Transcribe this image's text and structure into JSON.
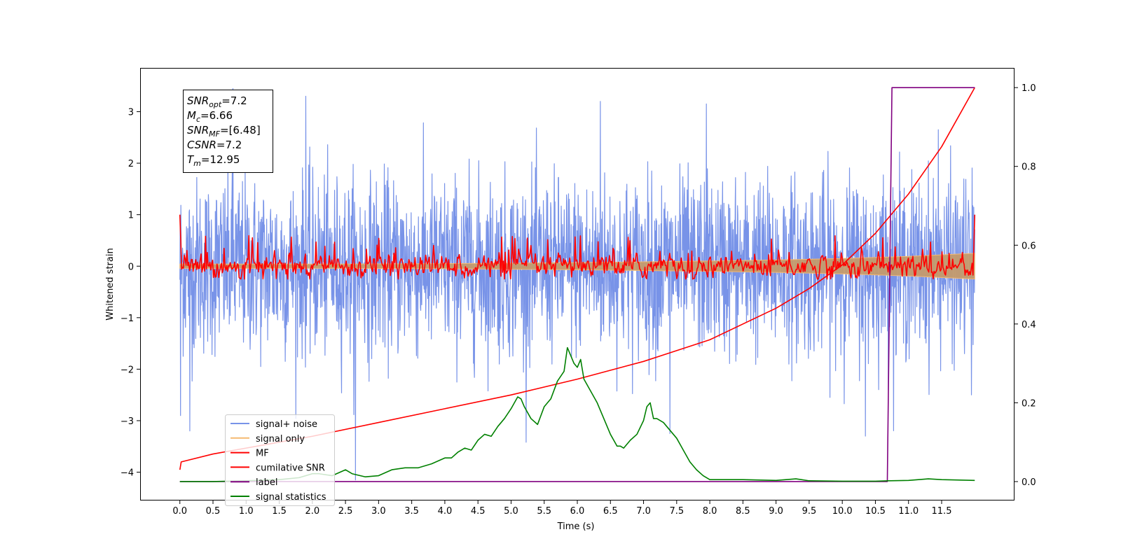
{
  "chart_data": {
    "type": "line",
    "title": "",
    "xlabel": "Time (s)",
    "ylabel": "Whitened strain",
    "ylabel_right": "",
    "xlim": [
      -0.6,
      12.6
    ],
    "ylim": [
      -4.55,
      3.85
    ],
    "ylim_right": [
      -0.048,
      1.05
    ],
    "x_ticks": [
      0.0,
      0.5,
      1.0,
      1.5,
      2.0,
      2.5,
      3.0,
      3.5,
      4.0,
      4.5,
      5.0,
      5.5,
      6.0,
      6.5,
      7.0,
      7.5,
      8.0,
      8.5,
      9.0,
      9.5,
      10.0,
      10.5,
      11.0,
      11.5
    ],
    "x_tick_labels": [
      "0.0",
      "0.5",
      "1.0",
      "1.5",
      "2.0",
      "2.5",
      "3.0",
      "3.5",
      "4.0",
      "4.5",
      "5.0",
      "5.5",
      "6.0",
      "6.5",
      "7.0",
      "7.5",
      "8.0",
      "8.5",
      "9.0",
      "9.5",
      "10.0",
      "10.5",
      "11.0",
      "11.5"
    ],
    "y_ticks": [
      3,
      2,
      1,
      0,
      -1,
      -2,
      -3,
      -4
    ],
    "y_tick_labels": [
      "3",
      "2",
      "1",
      "0",
      "−1",
      "−2",
      "−3",
      "−4"
    ],
    "y_right_ticks": [
      1.0,
      0.8,
      0.6,
      0.4,
      0.2,
      0.0
    ],
    "y_right_tick_labels": [
      "1.0",
      "0.8",
      "0.6",
      "0.4",
      "0.2",
      "0.0"
    ],
    "grid": false,
    "legend_position": "lower-left",
    "annotation_lines": [
      {
        "sym": "SNR",
        "sub": "opt",
        "value": "=7.2"
      },
      {
        "sym": "M",
        "sub": "c",
        "value": "=6.66"
      },
      {
        "sym": "SNR",
        "sub": "MF",
        "value": "=[6.48]"
      },
      {
        "sym": "CSNR",
        "sub": "",
        "value": "=7.2"
      },
      {
        "sym": "T",
        "sub": "m",
        "value": "=12.95"
      }
    ],
    "series": [
      {
        "name": "signal+ noise",
        "color": "#7893e8",
        "axis": "left",
        "kind": "noise",
        "x_range": [
          0.0,
          12.0
        ],
        "band_core": [
          -1.0,
          1.0
        ],
        "extreme_range": [
          -3.2,
          3.45
        ],
        "spikes": [
          [
            0.01,
            -2.9
          ],
          [
            0.15,
            -3.2
          ],
          [
            0.8,
            3.45
          ],
          [
            1.9,
            3.3
          ],
          [
            2.65,
            -4.15
          ],
          [
            6.35,
            3.2
          ],
          [
            7.4,
            -3.25
          ],
          [
            7.95,
            3.15
          ],
          [
            10.35,
            -3.3
          ],
          [
            11.45,
            2.65
          ],
          [
            11.95,
            -2.5
          ]
        ]
      },
      {
        "name": "signal only",
        "color": "#f5b971",
        "axis": "left",
        "kind": "envelope",
        "x": [
          0.0,
          2.0,
          4.0,
          6.0,
          8.0,
          9.0,
          10.0,
          11.0,
          12.0
        ],
        "upper": [
          0.04,
          0.04,
          0.05,
          0.07,
          0.1,
          0.12,
          0.15,
          0.19,
          0.25
        ],
        "lower": [
          -0.04,
          -0.04,
          -0.05,
          -0.07,
          -0.1,
          -0.12,
          -0.15,
          -0.19,
          -0.25
        ]
      },
      {
        "name": "MF",
        "color": "#ff0000",
        "axis": "left",
        "kind": "oscillation",
        "x_range": [
          0.0,
          12.0
        ],
        "start_value": 1.0,
        "end_value": 1.0,
        "range": [
          -0.25,
          0.6
        ]
      },
      {
        "name": "cumilative SNR",
        "color": "#ff0000",
        "axis": "right",
        "x": [
          0.0,
          0.02,
          0.5,
          1.0,
          1.5,
          2.0,
          3.0,
          4.0,
          5.0,
          6.0,
          7.0,
          8.0,
          9.0,
          9.5,
          10.0,
          10.5,
          11.0,
          11.5,
          12.0
        ],
        "values": [
          0.03,
          0.05,
          0.07,
          0.085,
          0.1,
          0.115,
          0.15,
          0.185,
          0.22,
          0.26,
          0.305,
          0.36,
          0.44,
          0.49,
          0.55,
          0.63,
          0.73,
          0.85,
          1.0
        ]
      },
      {
        "name": "label",
        "color": "#800080",
        "axis": "right",
        "x": [
          0.0,
          10.68,
          10.75,
          12.0
        ],
        "values": [
          0.0,
          0.0,
          1.0,
          1.0
        ]
      },
      {
        "name": "signal statistics",
        "color": "#008000",
        "axis": "right",
        "x": [
          0.0,
          0.5,
          1.0,
          1.5,
          1.8,
          2.0,
          2.1,
          2.3,
          2.5,
          2.6,
          2.8,
          3.0,
          3.2,
          3.4,
          3.6,
          3.8,
          4.0,
          4.1,
          4.2,
          4.3,
          4.4,
          4.5,
          4.6,
          4.7,
          4.8,
          4.9,
          5.0,
          5.1,
          5.15,
          5.2,
          5.3,
          5.4,
          5.5,
          5.6,
          5.7,
          5.8,
          5.85,
          5.9,
          5.95,
          6.0,
          6.05,
          6.1,
          6.2,
          6.3,
          6.4,
          6.5,
          6.6,
          6.65,
          6.7,
          6.8,
          6.9,
          7.0,
          7.05,
          7.1,
          7.15,
          7.2,
          7.3,
          7.4,
          7.5,
          7.6,
          7.7,
          7.8,
          7.9,
          8.0,
          8.2,
          8.5,
          9.0,
          9.3,
          9.5,
          10.0,
          10.5,
          10.7,
          11.0,
          11.3,
          11.5,
          12.0
        ],
        "values": [
          0.0,
          0.0,
          0.002,
          0.005,
          0.01,
          0.02,
          0.02,
          0.015,
          0.03,
          0.02,
          0.012,
          0.015,
          0.03,
          0.035,
          0.035,
          0.045,
          0.06,
          0.06,
          0.075,
          0.085,
          0.08,
          0.105,
          0.12,
          0.115,
          0.14,
          0.16,
          0.185,
          0.215,
          0.21,
          0.19,
          0.16,
          0.145,
          0.19,
          0.21,
          0.255,
          0.28,
          0.34,
          0.32,
          0.3,
          0.29,
          0.31,
          0.26,
          0.23,
          0.2,
          0.16,
          0.12,
          0.09,
          0.09,
          0.085,
          0.105,
          0.12,
          0.155,
          0.19,
          0.2,
          0.16,
          0.16,
          0.15,
          0.13,
          0.11,
          0.08,
          0.05,
          0.03,
          0.015,
          0.005,
          0.005,
          0.005,
          0.003,
          0.007,
          0.002,
          0.001,
          0.001,
          0.002,
          0.003,
          0.007,
          0.005,
          0.003
        ]
      }
    ]
  }
}
